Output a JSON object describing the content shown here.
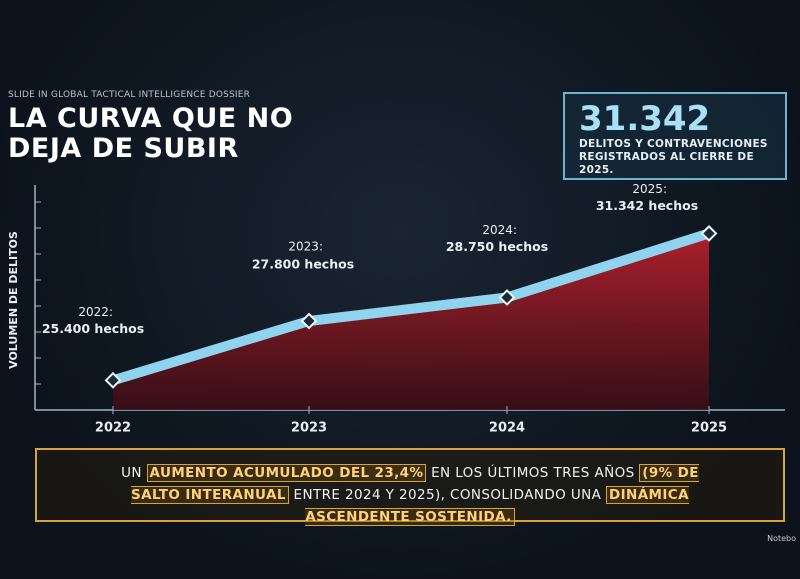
{
  "chart_data": {
    "type": "area",
    "kicker": "SLIDE IN GLOBAL TACTICAL INTELLIGENCE DOSSIER",
    "title": "LA CURVA QUE NO DEJA DE SUBIR",
    "y_label": "VOLUMEN DE DELITOS",
    "categories": [
      "2022",
      "2023",
      "2024",
      "2025"
    ],
    "point_labels": [
      "2022:",
      "2023:",
      "2024:",
      "2025:"
    ],
    "values": [
      25400,
      27800,
      28750,
      31342
    ],
    "value_labels": [
      "25.400 hechos",
      "27.800 hechos",
      "28.750 hechos",
      "31.342 hechos"
    ],
    "ylim": [
      24200,
      33300
    ],
    "line_color": "#8fd3ee",
    "fill_color": "#8a1b26",
    "callout": {
      "figure": "31.342",
      "text": "DELITOS Y CONTRAVENCIONES REGISTRADOS AL CIERRE DE 2025."
    },
    "summary": [
      {
        "text": "UN ",
        "highlight": false
      },
      {
        "text": "AUMENTO ACUMULADO DEL 23,4%",
        "highlight": true
      },
      {
        "text": " EN LOS ÚLTIMOS TRES AÑOS ",
        "highlight": false
      },
      {
        "text": "(9% DE SALTO INTERANUAL",
        "highlight": true
      },
      {
        "text": " ENTRE 2024 Y 2025), CONSOLIDANDO UNA ",
        "highlight": false
      },
      {
        "text": "DINÁMICA ASCENDENTE SOSTENIDA.",
        "highlight": true
      }
    ],
    "watermark": "Notebo"
  }
}
